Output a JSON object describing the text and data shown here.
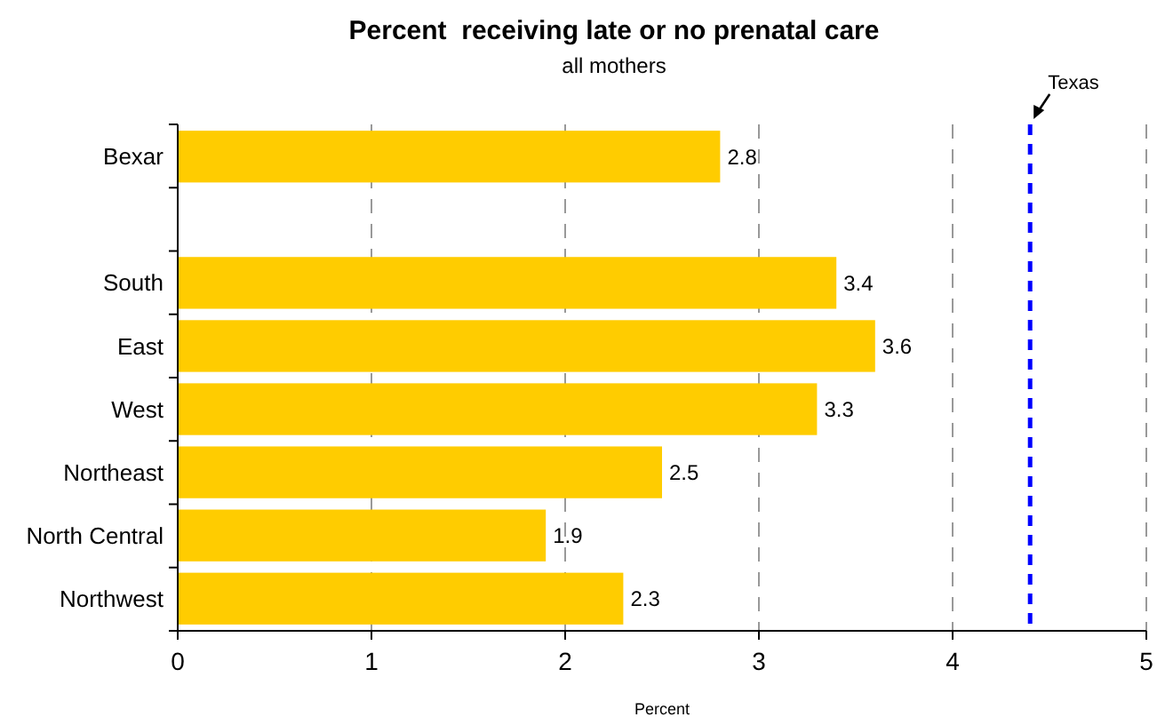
{
  "chart_data": {
    "type": "bar",
    "orientation": "horizontal",
    "title": "Percent  receiving late or no prenatal care",
    "subtitle": "all mothers",
    "xlabel": "Percent",
    "categories": [
      "Bexar",
      null,
      "South",
      "East",
      "West",
      "Northeast",
      "North Central",
      "Northwest"
    ],
    "values": [
      2.8,
      null,
      3.4,
      3.6,
      3.3,
      2.5,
      1.9,
      2.3
    ],
    "color": "#ffcc00",
    "data_labels": true,
    "xlim": [
      0,
      5
    ],
    "xticks": [
      0,
      1,
      2,
      3,
      4,
      5
    ],
    "grid": "x",
    "ref_lines": [
      {
        "axis": "x",
        "value": 4.4,
        "label": "Texas",
        "color": "#0000ff",
        "line_style": "dashed"
      }
    ]
  }
}
